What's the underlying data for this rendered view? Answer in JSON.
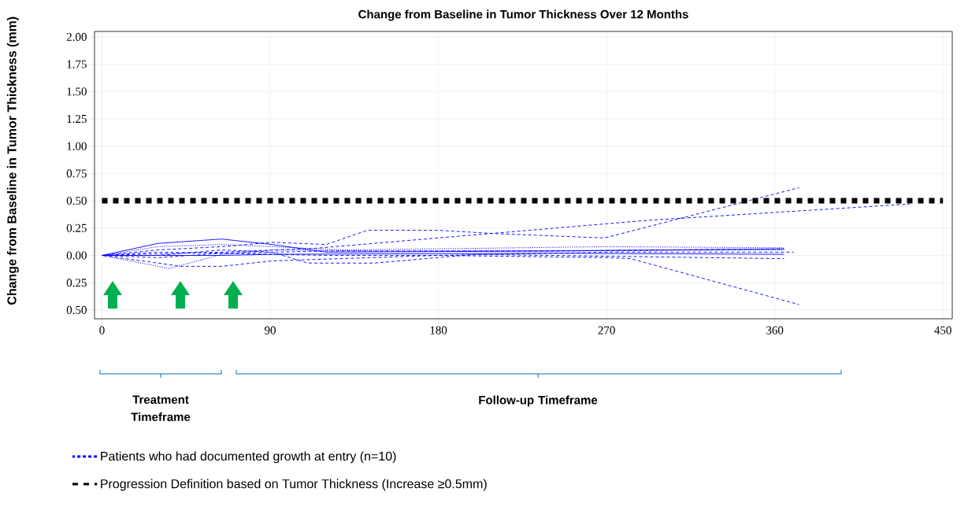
{
  "chart_data": {
    "type": "line",
    "title": "Change from Baseline in Tumor Thickness Over 12 Months",
    "ylabel": "Change from Baseline in Tumor Thickness (mm)",
    "xlim": [
      -4,
      455
    ],
    "xticks": [
      0,
      90,
      180,
      270,
      360,
      450
    ],
    "ylim": [
      -0.58,
      2.05
    ],
    "yticks": [
      {
        "value": 2,
        "label": "2.00"
      },
      {
        "value": 1.75,
        "label": "1.75"
      },
      {
        "value": 1.5,
        "label": "1.50"
      },
      {
        "value": 1.25,
        "label": "1.25"
      },
      {
        "value": 1,
        "label": "1.00"
      },
      {
        "value": 0.75,
        "label": "0.75"
      },
      {
        "value": 0.5,
        "label": "0.50"
      },
      {
        "value": 0.25,
        "label": "0.25"
      },
      {
        "value": 0,
        "label": "0.00"
      },
      {
        "value": -0.25,
        "label": "0.25"
      },
      {
        "value": -0.5,
        "label": "0.50"
      }
    ],
    "grid": true,
    "legend": "bottom",
    "marker": "none",
    "series": [
      {
        "name": "Patients who had documented growth at entry (n=10)",
        "color": "#0000ff",
        "line_style": "dashed",
        "x": [
          0,
          30,
          64,
          91,
          120,
          142,
          180,
          210,
          269,
          373
        ],
        "values": [
          0,
          0.05,
          0.08,
          0.12,
          0.1,
          0.23,
          0.23,
          0.2,
          0.16,
          0.62
        ]
      },
      {
        "color": "#0000ff",
        "line_style": "solid",
        "x": [
          0,
          30,
          64,
          91,
          120,
          240,
          365
        ],
        "values": [
          0,
          0.11,
          0.15,
          0.1,
          0.03,
          0.04,
          0.06
        ]
      },
      {
        "color": "#0000ff",
        "line_style": "dashed",
        "x": [
          0,
          64,
          114,
          291,
          432
        ],
        "values": [
          0,
          0.03,
          0.065,
          0.32,
          0.47
        ]
      },
      {
        "color": "#0000ff",
        "line_style": "dashed",
        "x": [
          0,
          30,
          64,
          120,
          180,
          270,
          283,
          373
        ],
        "values": [
          0,
          -0.02,
          0.02,
          0,
          0,
          -0.02,
          -0.03,
          -0.45
        ]
      },
      {
        "color": "#0000ff",
        "line_style": "dashed",
        "x": [
          0,
          30,
          42,
          64,
          91,
          180,
          270,
          370
        ],
        "values": [
          0,
          -0.07,
          -0.1,
          -0.1,
          -0.05,
          0,
          0.03,
          0.03
        ]
      },
      {
        "color": "#0000ff",
        "line_style": "dotted",
        "x": [
          0,
          36,
          64,
          91,
          150,
          365
        ],
        "values": [
          0,
          -0.12,
          0.01,
          0.05,
          0.04,
          0.05
        ]
      },
      {
        "color": "#0000ff",
        "line_style": "dashed",
        "x": [
          0,
          30,
          64,
          91,
          110,
          146,
          200,
          365
        ],
        "values": [
          0,
          0,
          0.05,
          0.03,
          -0.07,
          -0.07,
          0.01,
          -0.03
        ]
      },
      {
        "color": "#0000ff",
        "line_style": "dashed",
        "x": [
          0,
          30,
          64,
          120,
          240,
          365
        ],
        "values": [
          0,
          0.03,
          0.02,
          0.04,
          0.04,
          0.06
        ]
      },
      {
        "color": "#0000ff",
        "line_style": "dotted",
        "x": [
          0,
          30,
          64,
          91,
          130,
          270,
          365
        ],
        "values": [
          0,
          0.08,
          0.1,
          0.08,
          0.05,
          0.08,
          0.07
        ]
      },
      {
        "color": "#0000ff",
        "line_style": "solid",
        "x": [
          0,
          30,
          64,
          91,
          240,
          365
        ],
        "values": [
          0,
          0,
          0,
          0.01,
          0.02,
          0.01
        ]
      }
    ],
    "ref_lines": [
      {
        "axis": "y",
        "value": 0.5,
        "label": "Progression Definition based on Tumor Thickness (Increase ≥0.5mm)",
        "color": "#000000",
        "line_style": "dotted"
      }
    ],
    "annotations": [
      "Treatment Timeframe",
      "Follow-up Timeframe"
    ]
  }
}
